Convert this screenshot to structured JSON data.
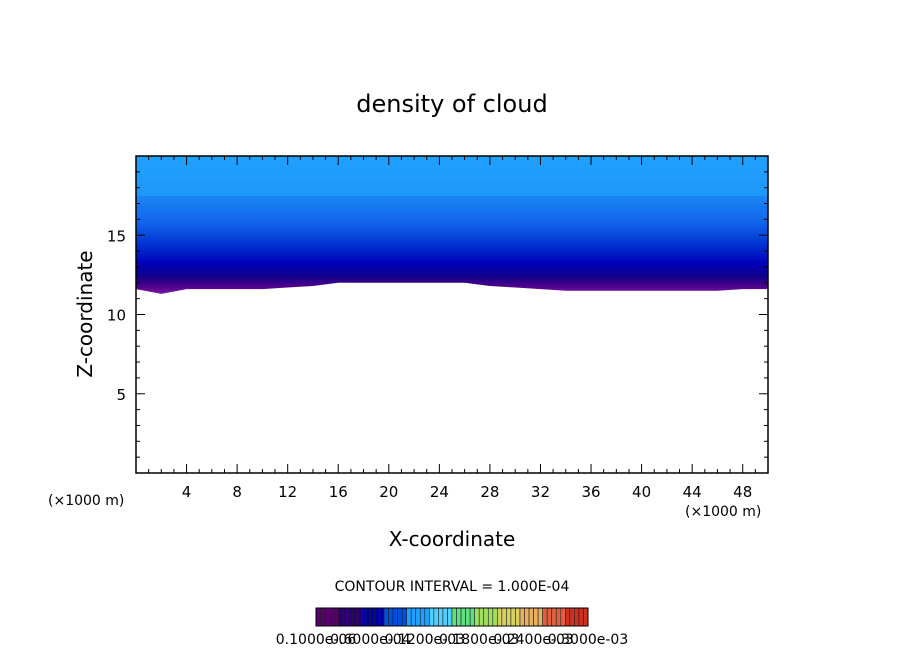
{
  "chart_data": {
    "type": "heatmap",
    "title": "density of cloud",
    "xlabel": "X-coordinate",
    "ylabel": "Z-coordinate",
    "x_unit": "(×1000 m)",
    "y_unit": "(×1000 m)",
    "xlim": [
      0,
      50
    ],
    "ylim": [
      0,
      20
    ],
    "x_ticks": [
      "4",
      "8",
      "12",
      "16",
      "20",
      "24",
      "28",
      "32",
      "36",
      "40",
      "44",
      "48"
    ],
    "y_ticks": [
      "5",
      "10",
      "15"
    ],
    "x_tick_values": [
      4,
      8,
      12,
      16,
      20,
      24,
      28,
      32,
      36,
      40,
      44,
      48
    ],
    "y_tick_values": [
      5,
      10,
      15
    ],
    "contour_interval_label": "CONTOUR INTERVAL = 1.000E-04",
    "colorbar_labels": [
      "0.1000e-06",
      "0.6000e-04",
      "0.1200e-03",
      "0.1800e-03",
      "0.2400e-03",
      "0.3000e-03"
    ],
    "colorbar_colors": [
      "#5a006e",
      "#2a0070",
      "#0000a0",
      "#0050e0",
      "#20a0ff",
      "#50d0ff",
      "#60e080",
      "#a0e060",
      "#d8d060",
      "#e8b060",
      "#e06040",
      "#d03020"
    ],
    "cloud_base_profile": {
      "x": [
        0,
        2,
        4,
        6,
        8,
        10,
        12,
        14,
        16,
        18,
        20,
        22,
        24,
        26,
        28,
        30,
        32,
        34,
        36,
        38,
        40,
        42,
        44,
        46,
        48,
        50
      ],
      "z_base": [
        11.6,
        11.3,
        11.6,
        11.6,
        11.6,
        11.6,
        11.7,
        11.8,
        12.0,
        12.0,
        12.0,
        12.0,
        12.0,
        12.0,
        11.8,
        11.7,
        11.6,
        11.5,
        11.5,
        11.5,
        11.5,
        11.5,
        11.5,
        11.5,
        11.6,
        11.6
      ]
    },
    "cloud_top": 20,
    "grid": false,
    "legend": "bottom"
  }
}
